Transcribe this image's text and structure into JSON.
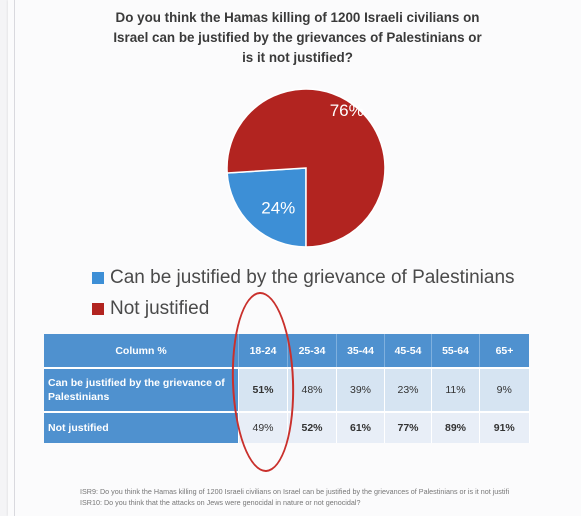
{
  "title_lines": [
    "Do you think the Hamas killing of 1200 Israeli civilians on",
    "Israel can be justified by the grievances of Palestinians or",
    "is it not justified?"
  ],
  "colors": {
    "justified": "#3d8fd6",
    "not_justified": "#b22420"
  },
  "chart_data": {
    "type": "pie",
    "slices": [
      {
        "label": "Can be justified by the grievance of Palestinians",
        "value": 24,
        "display": "24%",
        "color": "#3d8fd6"
      },
      {
        "label": "Not justified",
        "value": 76,
        "display": "76%",
        "color": "#b22420"
      }
    ],
    "legend_position": "bottom-left"
  },
  "legend": {
    "justified": "Can be justified by the grievance of Palestinians",
    "not_justified": "Not justified"
  },
  "table": {
    "column_header": "Column %",
    "age_groups": [
      "18-24",
      "25-34",
      "35-44",
      "45-54",
      "55-64",
      "65+"
    ],
    "rows": [
      {
        "label": "Can be justified by the grievance of Palestinians",
        "values": [
          "51%",
          "48%",
          "39%",
          "23%",
          "11%",
          "9%"
        ]
      },
      {
        "label": "Not justified",
        "values": [
          "49%",
          "52%",
          "61%",
          "77%",
          "89%",
          "91%"
        ]
      }
    ]
  },
  "footnotes": {
    "isr9": "ISR9: Do you think the Hamas killing of 1200 Israeli civilians on Israel can be justified by the grievances of Palestinians or is it not justifi",
    "isr10": "ISR10: Do you think that the attacks on Jews were genocidal in nature or not genocidal?"
  }
}
